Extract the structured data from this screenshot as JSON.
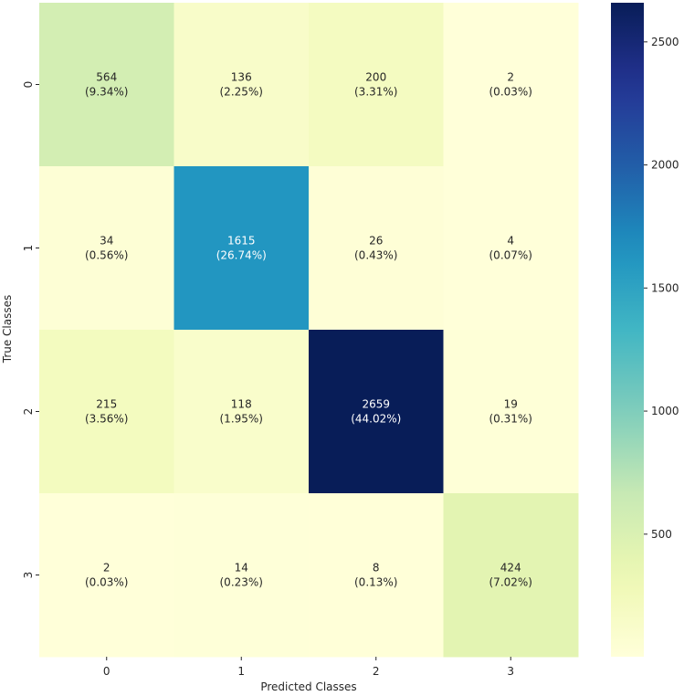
{
  "chart_data": {
    "type": "heatmap",
    "xlabel": "Predicted Classes",
    "ylabel": "True Classes",
    "x_categories": [
      "0",
      "1",
      "2",
      "3"
    ],
    "y_categories": [
      "0",
      "1",
      "2",
      "3"
    ],
    "values": [
      [
        564,
        136,
        200,
        2
      ],
      [
        34,
        1615,
        26,
        4
      ],
      [
        215,
        118,
        2659,
        19
      ],
      [
        2,
        14,
        8,
        424
      ]
    ],
    "percent_labels": [
      [
        "(9.34%)",
        "(2.25%)",
        "(3.31%)",
        "(0.03%)"
      ],
      [
        "(0.56%)",
        "(26.74%)",
        "(0.43%)",
        "(0.07%)"
      ],
      [
        "(3.56%)",
        "(1.95%)",
        "(44.02%)",
        "(0.31%)"
      ],
      [
        "(0.03%)",
        "(0.23%)",
        "(0.13%)",
        "(7.02%)"
      ]
    ],
    "colormap": "YlGnBu",
    "colorbar": {
      "range": [
        2,
        2659
      ],
      "ticks": [
        500,
        1000,
        1500,
        2000,
        2500
      ],
      "tick_labels": [
        "500",
        "1000",
        "1500",
        "2000",
        "2500"
      ]
    },
    "grid": false
  }
}
